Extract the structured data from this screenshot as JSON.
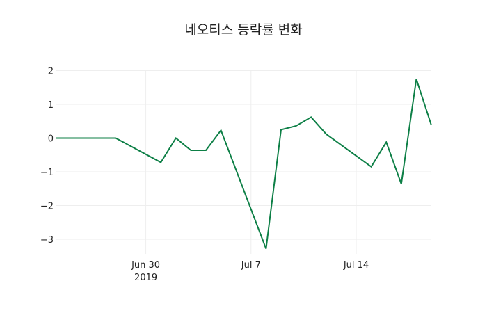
{
  "chart_data": {
    "type": "line",
    "title": "네오티스 등락률 변화",
    "xlabel": "",
    "ylabel": "",
    "ylim": [
      -3.5,
      2.0
    ],
    "grid": true,
    "legend": null,
    "x": [
      "2019-06-24",
      "2019-06-25",
      "2019-06-26",
      "2019-06-27",
      "2019-06-28",
      "2019-07-01",
      "2019-07-02",
      "2019-07-03",
      "2019-07-04",
      "2019-07-05",
      "2019-07-08",
      "2019-07-09",
      "2019-07-10",
      "2019-07-11",
      "2019-07-12",
      "2019-07-15",
      "2019-07-16",
      "2019-07-17",
      "2019-07-18",
      "2019-07-19"
    ],
    "series": [
      {
        "name": "등락률",
        "color": "#0d7f46",
        "values": [
          0,
          0,
          0,
          0,
          0,
          -0.72,
          0.0,
          -0.36,
          -0.36,
          0.23,
          -3.28,
          0.25,
          0.36,
          0.62,
          0.12,
          -0.85,
          -0.12,
          -1.36,
          1.75,
          0.38
        ]
      }
    ],
    "y_ticks": [
      "2",
      "1",
      "0",
      "−1",
      "−2",
      "−3"
    ],
    "x_ticks": [
      {
        "label": "Jun 30",
        "sub": "2019",
        "date": "2019-06-30"
      },
      {
        "label": "Jul 7",
        "sub": "",
        "date": "2019-07-07"
      },
      {
        "label": "Jul 14",
        "sub": "",
        "date": "2019-07-14"
      }
    ]
  }
}
